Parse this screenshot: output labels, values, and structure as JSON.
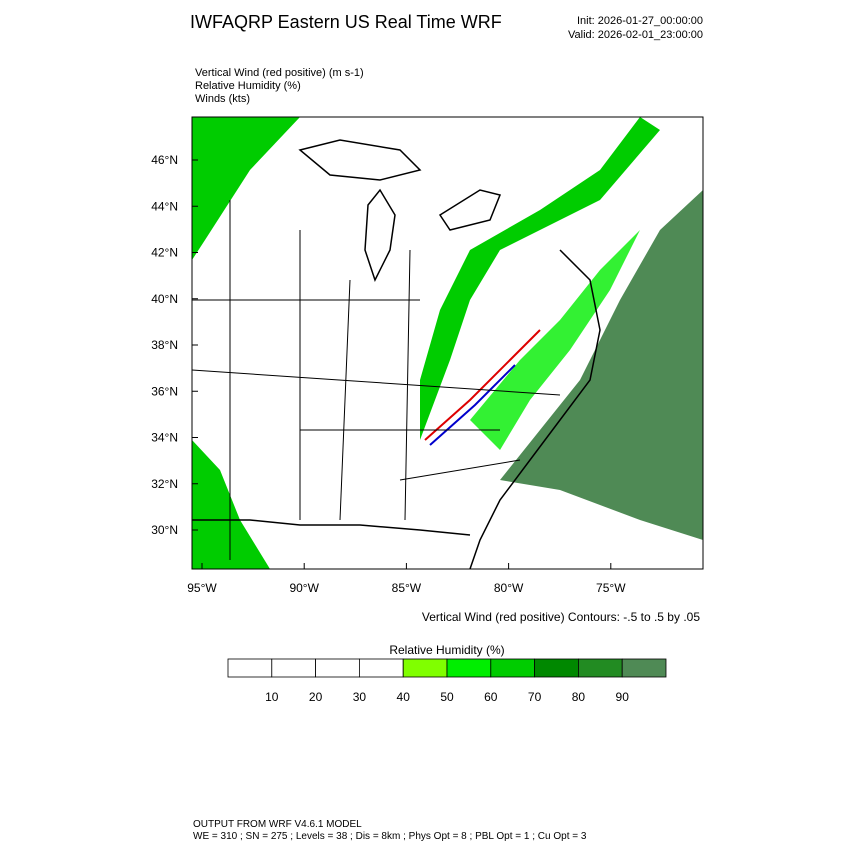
{
  "header": {
    "title": "IWFAQRP Eastern US Real Time WRF",
    "init": "Init: 2026-01-27_00:00:00",
    "valid": "Valid: 2026-02-01_23:00:00"
  },
  "fields": [
    "Vertical Wind (red positive)   (m s-1)",
    "Relative Humidity   (%)",
    "Winds   (kts)"
  ],
  "map": {
    "lat_labels": [
      "46°N",
      "44°N",
      "42°N",
      "40°N",
      "38°N",
      "36°N",
      "34°N",
      "32°N",
      "30°N"
    ],
    "lon_labels": [
      "95°W",
      "90°W",
      "85°W",
      "80°W",
      "75°W"
    ],
    "contour_note": "Vertical Wind (red positive) Contours: -.5 to .5 by .05"
  },
  "colorbar": {
    "title": "Relative Humidity  (%)",
    "colors": [
      "#ffffff",
      "#ffffff",
      "#ffffff",
      "#ffffff",
      "#80ff00",
      "#00ee00",
      "#00cc00",
      "#008800",
      "#228b22",
      "#4f8a55"
    ],
    "labels": [
      "10",
      "20",
      "30",
      "40",
      "50",
      "60",
      "70",
      "80",
      "90"
    ]
  },
  "footer": {
    "line1": "OUTPUT FROM WRF V4.6.1 MODEL",
    "line2": "WE = 310 ; SN = 275 ; Levels = 38 ; Dis = 8km ; Phys Opt = 8 ; PBL Opt = 1 ; Cu Opt = 3"
  }
}
